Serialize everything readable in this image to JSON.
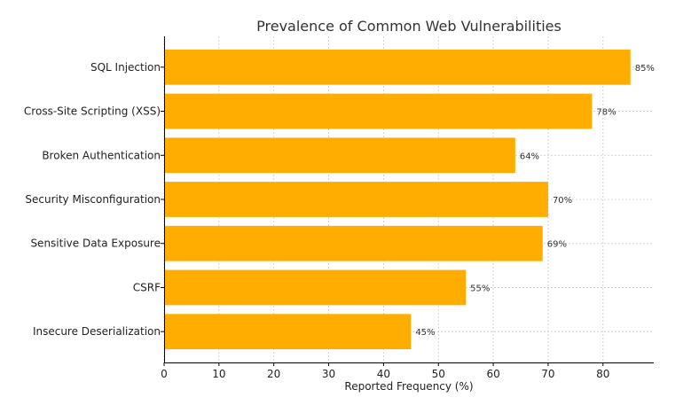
{
  "chart_data": {
    "type": "bar",
    "orientation": "horizontal",
    "title": "Prevalence of Common Web Vulnerabilities",
    "xlabel": "Reported Frequency (%)",
    "ylabel": "",
    "categories": [
      "SQL Injection",
      "Cross-Site Scripting (XSS)",
      "Broken Authentication",
      "Security Misconfiguration",
      "Sensitive Data Exposure",
      "CSRF",
      "Insecure Deserialization"
    ],
    "values": [
      85,
      78,
      64,
      70,
      69,
      55,
      45
    ],
    "data_labels": [
      "85%",
      "78%",
      "64%",
      "70%",
      "69%",
      "55%",
      "45%"
    ],
    "xlim": [
      0,
      89.25
    ],
    "xticks": [
      0,
      10,
      20,
      30,
      40,
      50,
      60,
      70,
      80
    ],
    "grid": true,
    "bar_color": "#ffad00"
  }
}
